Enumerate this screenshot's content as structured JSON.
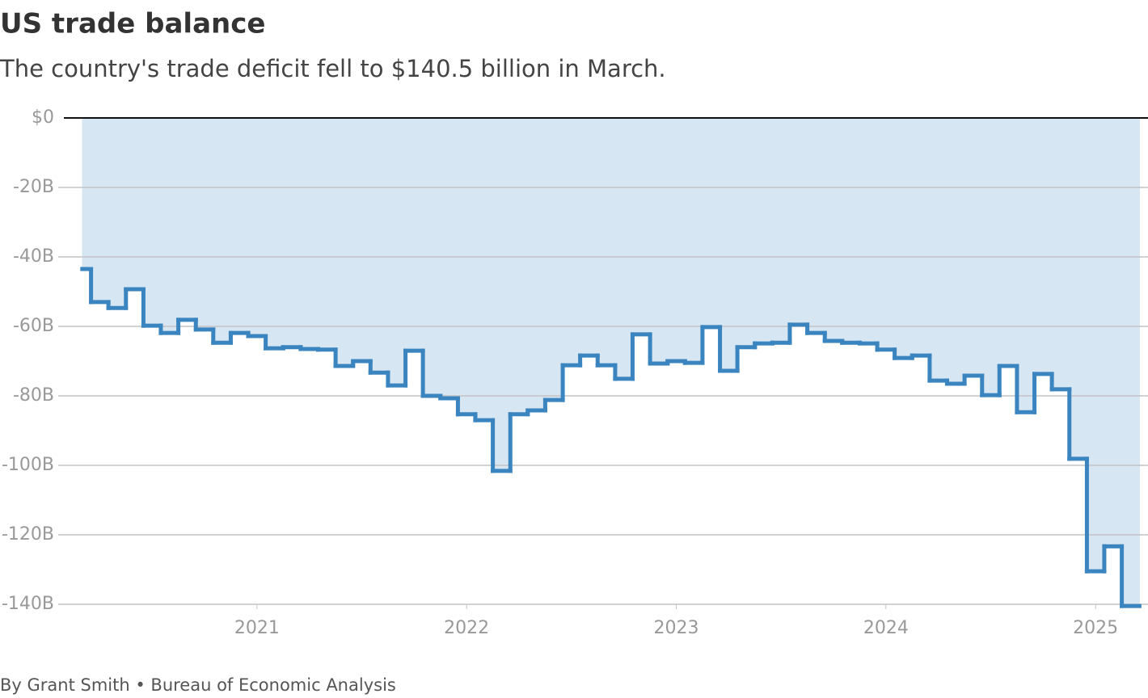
{
  "chart_data": {
    "type": "step",
    "title": "US trade balance",
    "subtitle": "The country's trade deficit fell to $140.5 billion in March.",
    "source": "By Grant Smith • Bureau of Economic Analysis",
    "color": "#3a84bf",
    "area_color": "#d6e6f3",
    "grid": true,
    "x": [
      2020.167,
      2020.25,
      2020.333,
      2020.417,
      2020.5,
      2020.583,
      2020.667,
      2020.75,
      2020.833,
      2020.917,
      2021.0,
      2021.083,
      2021.167,
      2021.25,
      2021.333,
      2021.417,
      2021.5,
      2021.583,
      2021.667,
      2021.75,
      2021.833,
      2021.917,
      2022.0,
      2022.083,
      2022.167,
      2022.25,
      2022.333,
      2022.417,
      2022.5,
      2022.583,
      2022.667,
      2022.75,
      2022.833,
      2022.917,
      2023.0,
      2023.083,
      2023.167,
      2023.25,
      2023.333,
      2023.417,
      2023.5,
      2023.583,
      2023.667,
      2023.75,
      2023.833,
      2023.917,
      2024.0,
      2024.083,
      2024.167,
      2024.25,
      2024.333,
      2024.417,
      2024.5,
      2024.583,
      2024.667,
      2024.75,
      2024.833,
      2024.917,
      2025.0,
      2025.083,
      2025.167
    ],
    "values": [
      -43.5,
      -53,
      -54.7,
      -49.3,
      -59.8,
      -61.9,
      -58.1,
      -60.9,
      -64.7,
      -61.9,
      -62.8,
      -66.3,
      -66,
      -66.5,
      -66.7,
      -71.4,
      -70,
      -73.3,
      -77,
      -67,
      -80,
      -80.7,
      -85.3,
      -87,
      -101.6,
      -85.3,
      -84.2,
      -81.2,
      -71.2,
      -68.4,
      -71.2,
      -75.1,
      -62.3,
      -70.7,
      -70,
      -70.5,
      -60.2,
      -72.8,
      -66,
      -64.9,
      -64.7,
      -59.5,
      -61.9,
      -64.2,
      -64.7,
      -64.9,
      -66.7,
      -69.1,
      -68.4,
      -75.6,
      -76.5,
      -74.2,
      -79.8,
      -71.4,
      -84.7,
      -73.7,
      -78.1,
      -98.1,
      -130.5,
      -123.3,
      -140.5
    ],
    "xlim": [
      2020.079,
      2025.25
    ],
    "xticks": [
      2021,
      2022,
      2023,
      2024,
      2025
    ],
    "ylim": [
      -140,
      0
    ],
    "yticks": [
      {
        "value": 0,
        "label": "$0"
      },
      {
        "value": -20,
        "label": "-20B"
      },
      {
        "value": -40,
        "label": "-40B"
      },
      {
        "value": -60,
        "label": "-60B"
      },
      {
        "value": -80,
        "label": "-80B"
      },
      {
        "value": -100,
        "label": "-100B"
      },
      {
        "value": -120,
        "label": "-120B"
      },
      {
        "value": -140,
        "label": "-140B"
      }
    ]
  }
}
